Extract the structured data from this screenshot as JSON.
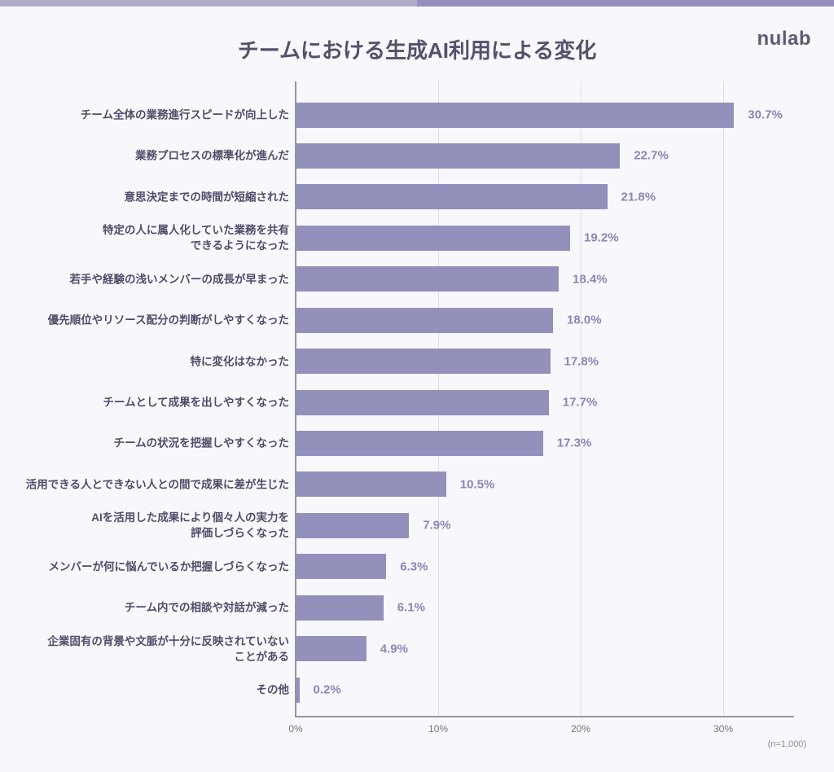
{
  "page": {
    "title": "チームにおける生成AI利用による変化",
    "logo": "nulab",
    "footnote": "(n=1,000)"
  },
  "colors": {
    "background": "#F8F7FB",
    "stripe_left": "#ADACC7",
    "stripe_right": "#938FBB",
    "bar_fill": "#9490BC",
    "category_label": "#4F4D68",
    "value_label": "#8B85B8",
    "grid_line": "#DEDDE8",
    "axis_line": "#96959F",
    "title_text": "#54526B"
  },
  "chart_data": {
    "type": "bar",
    "orientation": "horizontal",
    "title": "チームにおける生成AI利用による変化",
    "categories": [
      "チーム全体の業務進行スピードが向上した",
      "業務プロセスの標準化が進んだ",
      "意思決定までの時間が短縮された",
      "特定の人に属人化していた業務を共有\nできるようになった",
      "若手や経験の浅いメンバーの成長が早まった",
      "優先順位やリソース配分の判断がしやすくなった",
      "特に変化はなかった",
      "チームとして成果を出しやすくなった",
      "チームの状況を把握しやすくなった",
      "活用できる人とできない人との間で成果に差が生じた",
      "AIを活用した成果により個々人の実力を\n評価しづらくなった",
      "メンバーが何に悩んでいるか把握しづらくなった",
      "チーム内での相談や対話が減った",
      "企業固有の背景や文脈が十分に反映されていない\nことがある",
      "その他"
    ],
    "values": [
      30.7,
      22.7,
      21.8,
      19.2,
      18.4,
      18.0,
      17.8,
      17.7,
      17.3,
      10.5,
      7.9,
      6.3,
      6.1,
      4.9,
      0.2
    ],
    "value_labels": [
      "30.7%",
      "22.7%",
      "21.8%",
      "19.2%",
      "18.4%",
      "18.0%",
      "17.8%",
      "17.7%",
      "17.3%",
      "10.5%",
      "7.9%",
      "6.3%",
      "6.1%",
      "4.9%",
      "0.2%"
    ],
    "xlabel": "",
    "ylabel": "",
    "xlim": [
      0,
      35
    ],
    "x_ticks": [
      "0%",
      "10%",
      "20%",
      "30%"
    ],
    "x_tick_values": [
      0,
      10,
      20,
      30
    ],
    "grid": "vertical-gridlines-at-10-20-30",
    "legend": "none",
    "sample_note": "(n=1,000)"
  }
}
